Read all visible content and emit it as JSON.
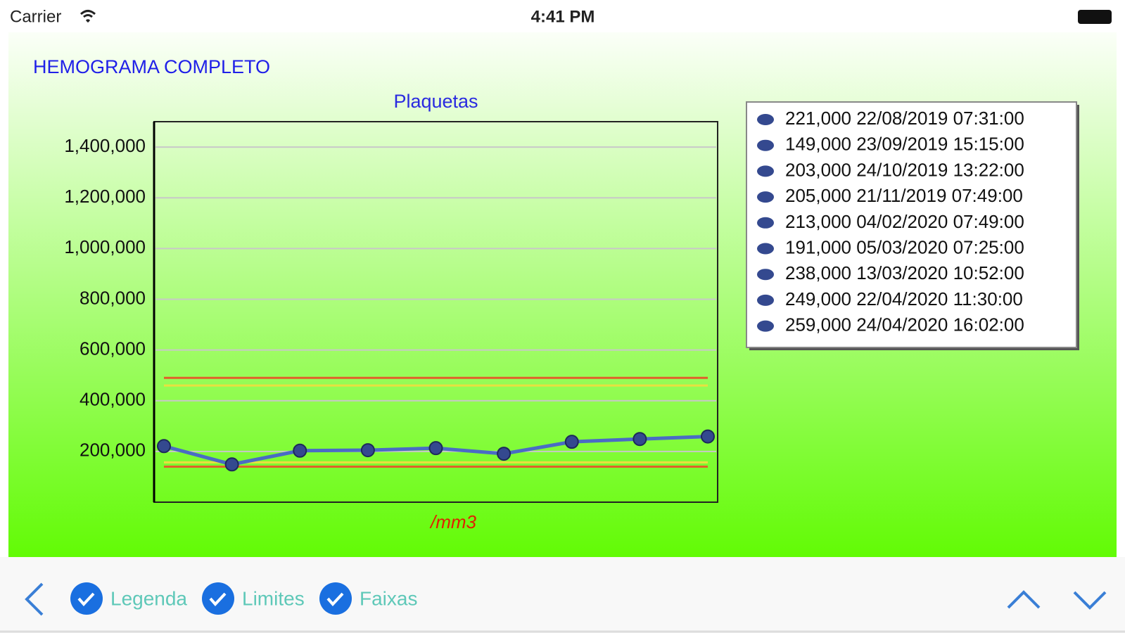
{
  "status_bar": {
    "carrier": "Carrier",
    "time": "4:41 PM"
  },
  "header": {
    "title": "HEMOGRAMA COMPLETO"
  },
  "chart_data": {
    "type": "line",
    "title": "Plaquetas",
    "x_label": "/mm3",
    "categories": [
      "22/08/2019 07:31:00",
      "23/09/2019 15:15:00",
      "24/10/2019 13:22:00",
      "21/11/2019 07:49:00",
      "04/02/2020 07:49:00",
      "05/03/2020 07:25:00",
      "13/03/2020 10:52:00",
      "22/04/2020 11:30:00",
      "24/04/2020 16:02:00"
    ],
    "values": [
      221000,
      149000,
      203000,
      205000,
      213000,
      191000,
      238000,
      249000,
      259000
    ],
    "value_labels": [
      "221,000",
      "149,000",
      "203,000",
      "205,000",
      "213,000",
      "191,000",
      "238,000",
      "249,000",
      "259,000"
    ],
    "color": "#4a6cc4",
    "marker_color": "#34498f",
    "ylim": [
      0,
      1500000
    ],
    "yticks": [
      {
        "value": 200000,
        "label": "200,000"
      },
      {
        "value": 400000,
        "label": "400,000"
      },
      {
        "value": 600000,
        "label": "600,000"
      },
      {
        "value": 800000,
        "label": "800,000"
      },
      {
        "value": 1000000,
        "label": "1,000,000"
      },
      {
        "value": 1200000,
        "label": "1,200,000"
      },
      {
        "value": 1400000,
        "label": "1,400,000"
      }
    ],
    "grid": true,
    "legend": "right",
    "limits": [
      {
        "value": 490000,
        "color": "#e0602a"
      },
      {
        "value": 460000,
        "color": "#e8e040"
      },
      {
        "value": 157000,
        "color": "#e8e040"
      },
      {
        "value": 140000,
        "color": "#e0602a"
      }
    ]
  },
  "toolbar": {
    "items": [
      {
        "label": "Legenda",
        "checked": true
      },
      {
        "label": "Limites",
        "checked": true
      },
      {
        "label": "Faixas",
        "checked": true
      }
    ]
  }
}
